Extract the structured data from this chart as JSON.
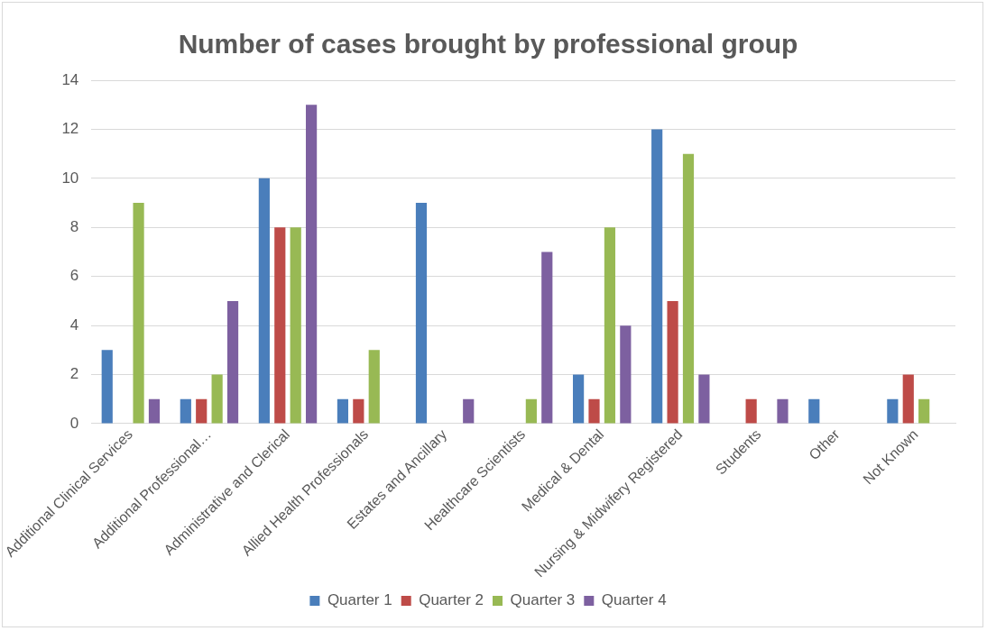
{
  "chart_data": {
    "type": "bar",
    "title": "Number of cases brought by professional group",
    "categories": [
      "Additional Clinical Services",
      "Additional Professional…",
      "Administrative and Clerical",
      "Allied Health Professionals",
      "Estates and Ancillary",
      "Healthcare Scientists",
      "Medical & Dental",
      "Nursing & Midwifery Registered",
      "Students",
      "Other",
      "Not Known"
    ],
    "series": [
      {
        "name": "Quarter 1",
        "color": "#4a7ebb",
        "values": [
          3,
          1,
          10,
          1,
          9,
          0,
          2,
          12,
          0,
          1,
          1
        ]
      },
      {
        "name": "Quarter 2",
        "color": "#be4b48",
        "values": [
          0,
          1,
          8,
          1,
          0,
          0,
          1,
          5,
          1,
          0,
          2
        ]
      },
      {
        "name": "Quarter 3",
        "color": "#98b954",
        "values": [
          9,
          2,
          8,
          3,
          0,
          1,
          8,
          11,
          0,
          0,
          1
        ]
      },
      {
        "name": "Quarter 4",
        "color": "#7d60a0",
        "values": [
          1,
          5,
          13,
          0,
          1,
          7,
          4,
          2,
          1,
          0,
          0
        ]
      }
    ],
    "ylim": [
      0,
      14
    ],
    "yticks": [
      0,
      2,
      4,
      6,
      8,
      10,
      12,
      14
    ],
    "grid": "y",
    "legend": "bottom"
  }
}
